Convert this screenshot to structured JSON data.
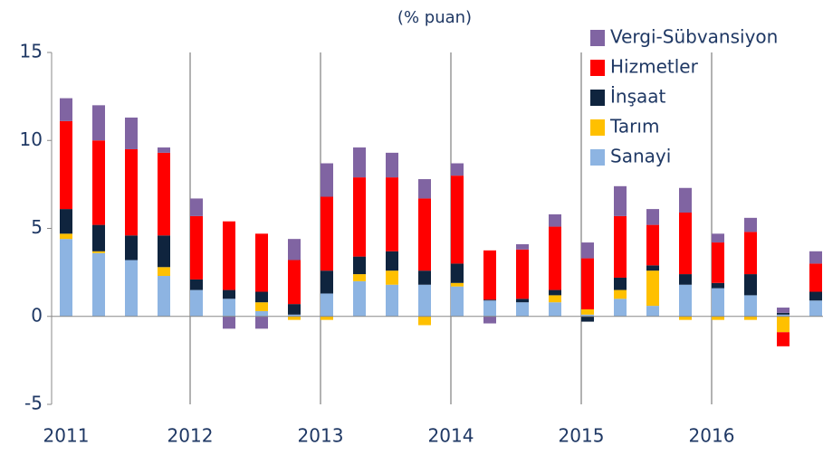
{
  "chart_data": {
    "type": "stacked_bar",
    "title": "(% puan)",
    "categories": [
      "2011",
      null,
      null,
      null,
      "2012",
      null,
      null,
      null,
      "2013",
      null,
      null,
      null,
      "2014",
      null,
      null,
      null,
      "2015",
      null,
      null,
      null,
      "2016",
      null,
      null,
      null
    ],
    "series": [
      {
        "name": "Sanayi",
        "color": "#8db4e2",
        "values": [
          4.4,
          3.6,
          3.2,
          2.3,
          1.5,
          1.0,
          0.3,
          0.1,
          1.3,
          2.0,
          1.8,
          1.8,
          1.7,
          0.9,
          0.8,
          0.8,
          0.1,
          1.0,
          0.6,
          1.8,
          1.6,
          1.2,
          0.1,
          0.9
        ]
      },
      {
        "name": "Tarım",
        "color": "#ffc000",
        "values": [
          0.3,
          0.1,
          0,
          0.5,
          0,
          0,
          0.5,
          -0.2,
          -0.2,
          0.4,
          0.8,
          -0.5,
          0.2,
          0,
          0,
          0.4,
          0.3,
          0.5,
          2.0,
          -0.2,
          -0.2,
          -0.2,
          -0.9,
          0
        ]
      },
      {
        "name": "İnşaat",
        "color": "#0f243e",
        "values": [
          1.4,
          1.5,
          1.4,
          1.8,
          0.6,
          0.5,
          0.6,
          0.6,
          1.3,
          1.0,
          1.1,
          0.8,
          1.1,
          0.05,
          0.2,
          0.3,
          -0.3,
          0.7,
          0.3,
          0.6,
          0.3,
          1.2,
          0.1,
          0.5
        ]
      },
      {
        "name": "Hizmetler",
        "color": "#ff0000",
        "values": [
          5.0,
          4.8,
          4.9,
          4.7,
          3.6,
          3.9,
          3.3,
          2.5,
          4.2,
          4.5,
          4.2,
          4.1,
          5.0,
          2.8,
          2.8,
          3.6,
          2.9,
          3.5,
          2.3,
          3.5,
          2.3,
          2.4,
          -0.8,
          1.6
        ]
      },
      {
        "name": "Vergi-Sübvansiyon",
        "color": "#8064a2",
        "values": [
          1.3,
          2.0,
          1.8,
          0.3,
          1.0,
          -0.7,
          -0.7,
          1.2,
          1.9,
          1.7,
          1.4,
          1.1,
          0.7,
          -0.4,
          0.3,
          0.7,
          0.9,
          1.7,
          0.9,
          1.4,
          0.5,
          0.8,
          0.3,
          0.7
        ]
      }
    ],
    "ylim": [
      -5,
      15
    ],
    "yticks": [
      -5,
      0,
      5,
      10,
      15
    ],
    "legend": "upper right"
  }
}
